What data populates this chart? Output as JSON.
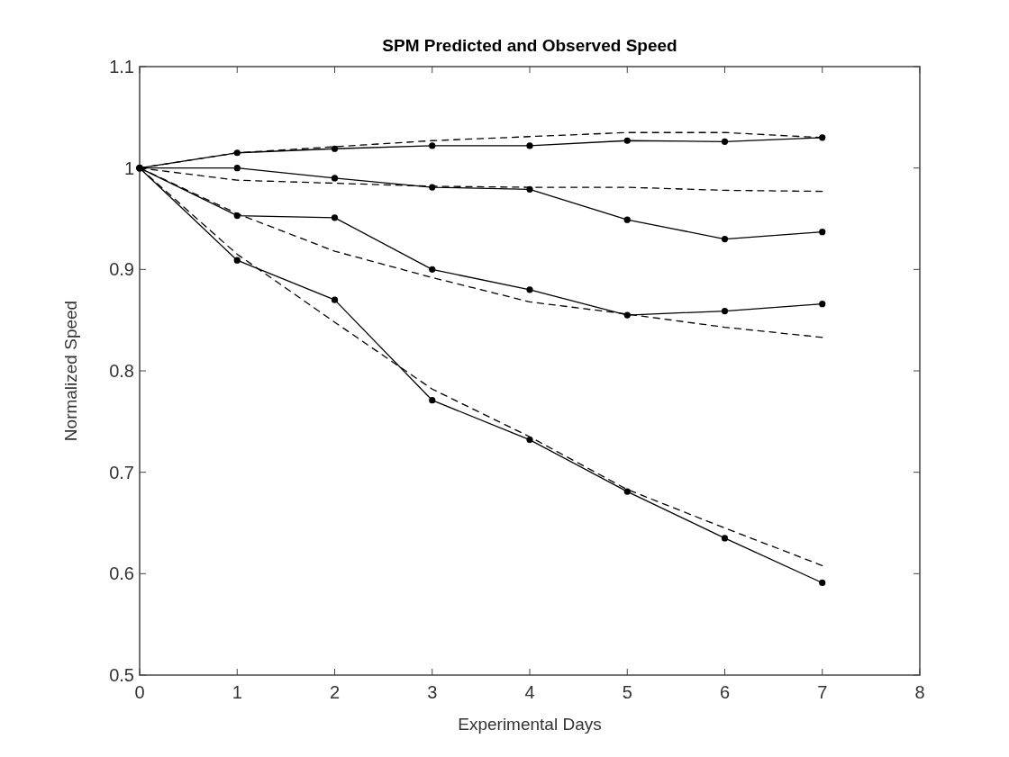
{
  "chart_data": {
    "type": "line",
    "title": "SPM Predicted and Observed Speed",
    "xlabel": "Experimental Days",
    "ylabel": "Normalized Speed",
    "x": [
      0,
      1,
      2,
      3,
      4,
      5,
      6,
      7
    ],
    "series": [
      {
        "color": "#000000",
        "marker": "circle",
        "line_style": "solid",
        "values": [
          1.0,
          1.015,
          1.019,
          1.022,
          1.022,
          1.027,
          1.026,
          1.03
        ]
      },
      {
        "color": "#000000",
        "marker": "none",
        "line_style": "dashed",
        "values": [
          1.0,
          1.015,
          1.021,
          1.027,
          1.031,
          1.035,
          1.035,
          1.03
        ]
      },
      {
        "color": "#000000",
        "marker": "circle",
        "line_style": "solid",
        "values": [
          1.0,
          1.0,
          0.99,
          0.981,
          0.979,
          0.949,
          0.93,
          0.937
        ]
      },
      {
        "color": "#000000",
        "marker": "none",
        "line_style": "dashed",
        "values": [
          1.0,
          0.988,
          0.985,
          0.982,
          0.981,
          0.981,
          0.978,
          0.977
        ]
      },
      {
        "color": "#000000",
        "marker": "circle",
        "line_style": "solid",
        "values": [
          1.0,
          0.953,
          0.951,
          0.9,
          0.88,
          0.855,
          0.859,
          0.866
        ]
      },
      {
        "color": "#000000",
        "marker": "none",
        "line_style": "dashed",
        "values": [
          1.0,
          0.955,
          0.918,
          0.892,
          0.868,
          0.856,
          0.843,
          0.833
        ]
      },
      {
        "color": "#000000",
        "marker": "circle",
        "line_style": "solid",
        "values": [
          1.0,
          0.909,
          0.87,
          0.771,
          0.732,
          0.681,
          0.635,
          0.591
        ]
      },
      {
        "color": "#000000",
        "marker": "none",
        "line_style": "dashed",
        "values": [
          1.0,
          0.915,
          0.848,
          0.782,
          0.735,
          0.683,
          0.645,
          0.608
        ]
      }
    ],
    "xlim": [
      0,
      8
    ],
    "xticks": [
      0,
      1,
      2,
      3,
      4,
      5,
      6,
      7,
      8
    ],
    "ylim": [
      0.5,
      1.1
    ],
    "yticks": [
      0.5,
      0.6,
      0.7,
      0.8,
      0.9,
      1,
      1.1
    ],
    "grid": false
  }
}
